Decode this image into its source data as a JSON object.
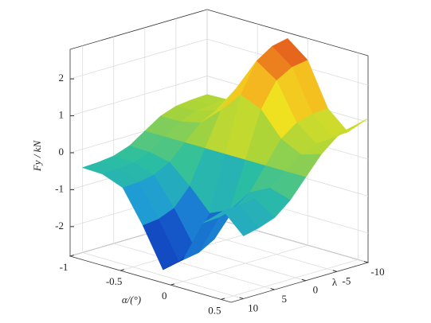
{
  "chart_data": {
    "type": "surface",
    "zlabel": "Fy / kN",
    "xlabel": "α/(°)",
    "ylabel": "λ",
    "x": [
      -1,
      -0.8,
      -0.6,
      -0.4,
      -0.2,
      0,
      0.2,
      0.4,
      0.6
    ],
    "y": [
      -10,
      -7.5,
      -5,
      -2.5,
      0,
      2.5,
      5,
      7.5,
      10
    ],
    "z": [
      [
        0.5,
        0.48,
        0.43,
        0.28,
        0,
        -0.28,
        -0.43,
        -0.48,
        -0.5
      ],
      [
        0.52,
        0.5,
        0.45,
        0.29,
        0,
        -0.29,
        -0.45,
        -0.5,
        -0.52
      ],
      [
        0.73,
        0.71,
        0.63,
        0.41,
        0,
        -0.41,
        -0.63,
        -0.71,
        -0.73
      ],
      [
        1.6,
        1.55,
        1.38,
        0.9,
        0,
        -0.9,
        -1.38,
        -1.55,
        -1.6
      ],
      [
        2.64,
        2.55,
        2.27,
        1.48,
        0,
        -1.48,
        -2.27,
        -2.55,
        -2.64
      ],
      [
        2.21,
        2.14,
        1.9,
        1.24,
        0,
        -1.24,
        -1.9,
        -2.14,
        -2.21
      ],
      [
        1.06,
        1.03,
        0.91,
        0.6,
        0,
        -0.6,
        -0.91,
        -1.03,
        -1.06
      ],
      [
        0.58,
        0.56,
        0.5,
        0.33,
        0,
        -0.33,
        -0.5,
        -0.56,
        -0.58
      ],
      [
        1.1,
        1.0,
        0.85,
        0.5,
        0,
        -0.5,
        -0.85,
        -1.0,
        -1.1
      ]
    ],
    "xlim": [
      -1,
      0.6
    ],
    "xticks": [
      -1,
      -0.5,
      0,
      0.5
    ],
    "ylim": [
      -10,
      12
    ],
    "yticks": [
      -10,
      -5,
      0,
      5,
      10
    ],
    "zlim": [
      -2.8,
      2.8
    ],
    "zticks": [
      -2,
      -1,
      0,
      1,
      2
    ],
    "grid": true,
    "colormap": [
      "#0a1f8f",
      "#1450c8",
      "#1f9ad8",
      "#2cbfa0",
      "#a8d43a",
      "#f2e21e",
      "#f5a020",
      "#d8281a"
    ]
  }
}
